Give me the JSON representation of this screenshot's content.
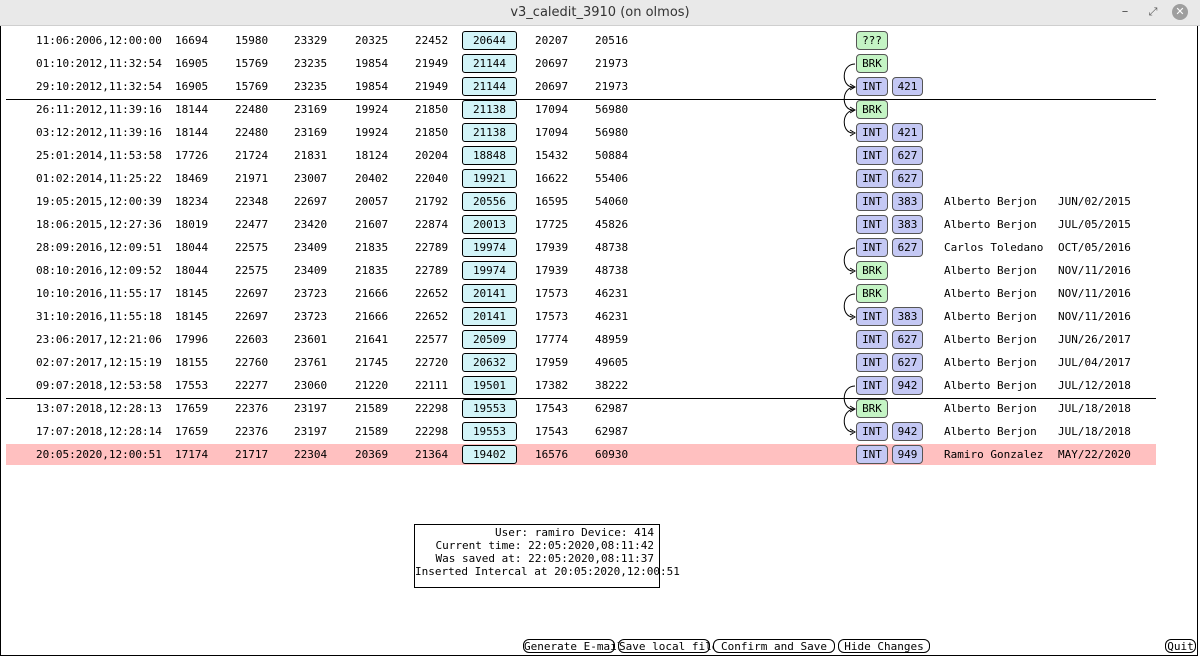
{
  "window": {
    "title": "v3_caledit_3910 (on olmos)"
  },
  "rows": [
    {
      "date": "11:06:2006,12:00:00",
      "v1": "16694",
      "v2": "15980",
      "v3": "23329",
      "v4": "20325",
      "v5": "22452",
      "boxed": "20644",
      "v7": "20207",
      "v8": "20516",
      "tag": "???",
      "num": "",
      "user": "",
      "changed": ""
    },
    {
      "date": "01:10:2012,11:32:54",
      "v1": "16905",
      "v2": "15769",
      "v3": "23235",
      "v4": "19854",
      "v5": "21949",
      "boxed": "21144",
      "v7": "20697",
      "v8": "21973",
      "tag": "BRK",
      "num": "",
      "user": "",
      "changed": ""
    },
    {
      "date": "29:10:2012,11:32:54",
      "v1": "16905",
      "v2": "15769",
      "v3": "23235",
      "v4": "19854",
      "v5": "21949",
      "boxed": "21144",
      "v7": "20697",
      "v8": "21973",
      "tag": "INT",
      "num": "421",
      "user": "",
      "changed": ""
    },
    {
      "date": "26:11:2012,11:39:16",
      "v1": "18144",
      "v2": "22480",
      "v3": "23169",
      "v4": "19924",
      "v5": "21850",
      "boxed": "21138",
      "v7": "17094",
      "v8": "56980",
      "tag": "BRK",
      "num": "",
      "user": "",
      "changed": ""
    },
    {
      "date": "03:12:2012,11:39:16",
      "v1": "18144",
      "v2": "22480",
      "v3": "23169",
      "v4": "19924",
      "v5": "21850",
      "boxed": "21138",
      "v7": "17094",
      "v8": "56980",
      "tag": "INT",
      "num": "421",
      "user": "",
      "changed": ""
    },
    {
      "date": "25:01:2014,11:53:58",
      "v1": "17726",
      "v2": "21724",
      "v3": "21831",
      "v4": "18124",
      "v5": "20204",
      "boxed": "18848",
      "v7": "15432",
      "v8": "50884",
      "tag": "INT",
      "num": "627",
      "user": "",
      "changed": ""
    },
    {
      "date": "01:02:2014,11:25:22",
      "v1": "18469",
      "v2": "21971",
      "v3": "23007",
      "v4": "20402",
      "v5": "22040",
      "boxed": "19921",
      "v7": "16622",
      "v8": "55406",
      "tag": "INT",
      "num": "627",
      "user": "",
      "changed": ""
    },
    {
      "date": "19:05:2015,12:00:39",
      "v1": "18234",
      "v2": "22348",
      "v3": "22697",
      "v4": "20057",
      "v5": "21792",
      "boxed": "20556",
      "v7": "16595",
      "v8": "54060",
      "tag": "INT",
      "num": "383",
      "user": "Alberto Berjon",
      "changed": "JUN/02/2015"
    },
    {
      "date": "18:06:2015,12:27:36",
      "v1": "18019",
      "v2": "22477",
      "v3": "23420",
      "v4": "21607",
      "v5": "22874",
      "boxed": "20013",
      "v7": "17725",
      "v8": "45826",
      "tag": "INT",
      "num": "383",
      "user": "Alberto Berjon",
      "changed": "JUL/05/2015"
    },
    {
      "date": "28:09:2016,12:09:51",
      "v1": "18044",
      "v2": "22575",
      "v3": "23409",
      "v4": "21835",
      "v5": "22789",
      "boxed": "19974",
      "v7": "17939",
      "v8": "48738",
      "tag": "INT",
      "num": "627",
      "user": "Carlos Toledano",
      "changed": "OCT/05/2016"
    },
    {
      "date": "08:10:2016,12:09:52",
      "v1": "18044",
      "v2": "22575",
      "v3": "23409",
      "v4": "21835",
      "v5": "22789",
      "boxed": "19974",
      "v7": "17939",
      "v8": "48738",
      "tag": "BRK",
      "num": "",
      "user": "Alberto Berjon",
      "changed": "NOV/11/2016"
    },
    {
      "date": "10:10:2016,11:55:17",
      "v1": "18145",
      "v2": "22697",
      "v3": "23723",
      "v4": "21666",
      "v5": "22652",
      "boxed": "20141",
      "v7": "17573",
      "v8": "46231",
      "tag": "BRK",
      "num": "",
      "user": "Alberto Berjon",
      "changed": "NOV/11/2016"
    },
    {
      "date": "31:10:2016,11:55:18",
      "v1": "18145",
      "v2": "22697",
      "v3": "23723",
      "v4": "21666",
      "v5": "22652",
      "boxed": "20141",
      "v7": "17573",
      "v8": "46231",
      "tag": "INT",
      "num": "383",
      "user": "Alberto Berjon",
      "changed": "NOV/11/2016"
    },
    {
      "date": "23:06:2017,12:21:06",
      "v1": "17996",
      "v2": "22603",
      "v3": "23601",
      "v4": "21641",
      "v5": "22577",
      "boxed": "20509",
      "v7": "17774",
      "v8": "48959",
      "tag": "INT",
      "num": "627",
      "user": "Alberto Berjon",
      "changed": "JUN/26/2017"
    },
    {
      "date": "02:07:2017,12:15:19",
      "v1": "18155",
      "v2": "22760",
      "v3": "23761",
      "v4": "21745",
      "v5": "22720",
      "boxed": "20632",
      "v7": "17959",
      "v8": "49605",
      "tag": "INT",
      "num": "627",
      "user": "Alberto Berjon",
      "changed": "JUL/04/2017"
    },
    {
      "date": "09:07:2018,12:53:58",
      "v1": "17553",
      "v2": "22277",
      "v3": "23060",
      "v4": "21220",
      "v5": "22111",
      "boxed": "19501",
      "v7": "17382",
      "v8": "38222",
      "tag": "INT",
      "num": "942",
      "user": "Alberto Berjon",
      "changed": "JUL/12/2018"
    },
    {
      "date": "13:07:2018,12:28:13",
      "v1": "17659",
      "v2": "22376",
      "v3": "23197",
      "v4": "21589",
      "v5": "22298",
      "boxed": "19553",
      "v7": "17543",
      "v8": "62987",
      "tag": "BRK",
      "num": "",
      "user": "Alberto Berjon",
      "changed": "JUL/18/2018"
    },
    {
      "date": "17:07:2018,12:28:14",
      "v1": "17659",
      "v2": "22376",
      "v3": "23197",
      "v4": "21589",
      "v5": "22298",
      "boxed": "19553",
      "v7": "17543",
      "v8": "62987",
      "tag": "INT",
      "num": "942",
      "user": "Alberto Berjon",
      "changed": "JUL/18/2018"
    },
    {
      "date": "20:05:2020,12:00:51",
      "v1": "17174",
      "v2": "21717",
      "v3": "22304",
      "v4": "20369",
      "v5": "21364",
      "boxed": "19402",
      "v7": "16576",
      "v8": "60930",
      "tag": "INT",
      "num": "949",
      "user": "Ramiro Gonzalez",
      "changed": "MAY/22/2020",
      "selected": true
    }
  ],
  "info": {
    "line1": "User: ramiro Device: 414",
    "line2": "Current time: 22:05:2020,08:11:42",
    "line3": "Was saved at: 22:05:2020,08:11:37",
    "line4": "Inserted Intercal at 20:05:2020,12:00:51"
  },
  "buttons": {
    "email": "Generate E-mail",
    "save_local": "Save local file",
    "confirm": "Confirm and Save",
    "hide": "Hide Changes",
    "quit": "Quit"
  },
  "colors": {
    "selected_row": "#ffc0c0",
    "boxed_value": "#d2f4f8",
    "int_tag": "#c4c8f4",
    "brk_tag": "#c4f4c4"
  }
}
